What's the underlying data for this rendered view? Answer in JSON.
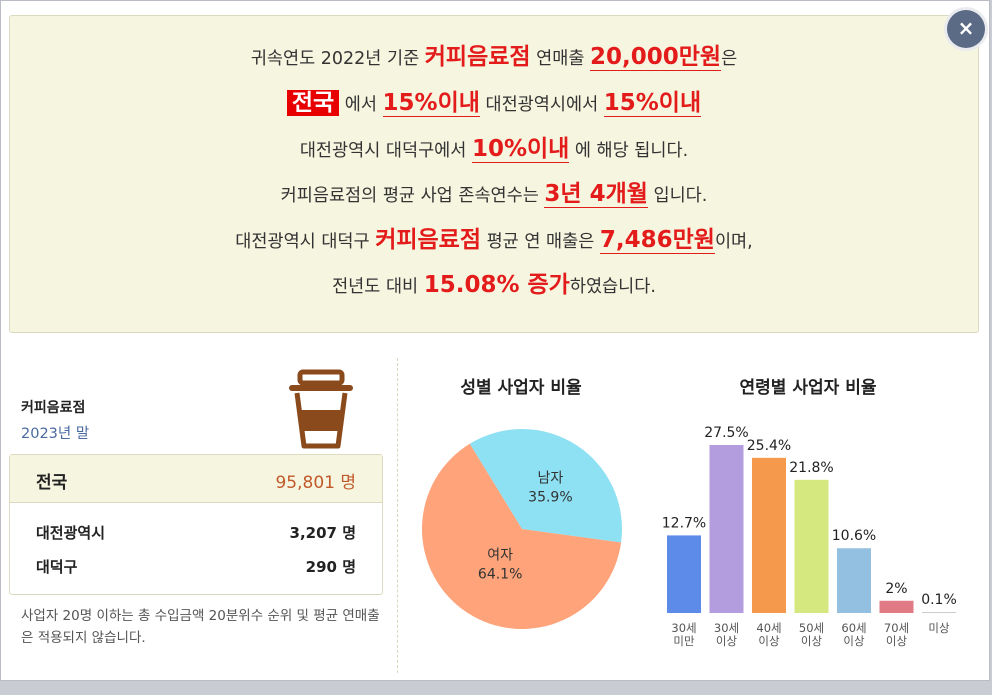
{
  "summary": {
    "line1": {
      "pre": "귀속연도 2022년 기준 ",
      "biz": "커피음료점",
      "mid": " 연매출 ",
      "sales": "20,000만원",
      "post": "은"
    },
    "line2": {
      "region": "전국",
      "a": " 에서 ",
      "pct1": "15%이내",
      "b": " 대전광역시에서 ",
      "pct2": "15%이내"
    },
    "line3": {
      "pre": "대전광역시 대덕구에서 ",
      "pct": "10%이내",
      "post": " 에 해당 됩니다."
    },
    "line4": {
      "pre": "커피음료점의 평균 사업 존속연수는 ",
      "years": "3년 4개월",
      "post": " 입니다."
    },
    "line5": {
      "pre": "대전광역시 대덕구 ",
      "biz": "커피음료점",
      "mid": " 평균 연 매출은 ",
      "sales": "7,486만원",
      "post": "이며,"
    },
    "line6": {
      "pre": "전년도 대비 ",
      "change": "15.08% 증가",
      "post": "하였습니다."
    }
  },
  "close_label": "×",
  "business": {
    "name": "커피음료점",
    "year": "2023년 말",
    "icon": "coffee-cup-icon"
  },
  "stats": {
    "national": {
      "label": "전국",
      "value": "95,801 명"
    },
    "city": {
      "label": "대전광역시",
      "value": "3,207 명"
    },
    "district": {
      "label": "대덕구",
      "value": "290 명"
    }
  },
  "note": "사업자 20명 이하는 총 수입금액 20분위수 순위 및 평균 연매출은 적용되지 않습니다.",
  "chart_data": [
    {
      "type": "pie",
      "title": "성별 사업자 비율",
      "slices": [
        {
          "label": "남자",
          "value": 35.9,
          "value_label": "35.9%",
          "color": "#8ee0f3"
        },
        {
          "label": "여자",
          "value": 64.1,
          "value_label": "64.1%",
          "color": "#fea37a"
        }
      ]
    },
    {
      "type": "bar",
      "title": "연령별 사업자 비율",
      "categories": [
        [
          "30세",
          "미만"
        ],
        [
          "30세",
          "이상"
        ],
        [
          "40세",
          "이상"
        ],
        [
          "50세",
          "이상"
        ],
        [
          "60세",
          "이상"
        ],
        [
          "70세",
          "이상"
        ],
        [
          "미상"
        ]
      ],
      "values": [
        12.7,
        27.5,
        25.4,
        21.8,
        10.6,
        2,
        0.1
      ],
      "value_labels": [
        "12.7%",
        "27.5%",
        "25.4%",
        "21.8%",
        "10.6%",
        "2%",
        "0.1%"
      ],
      "colors": [
        "#5c8bea",
        "#b39ddf",
        "#f59a4c",
        "#d5e87f",
        "#93bfe0",
        "#e07a84",
        "#cccccc"
      ],
      "ylim": [
        0,
        27.5
      ]
    }
  ]
}
